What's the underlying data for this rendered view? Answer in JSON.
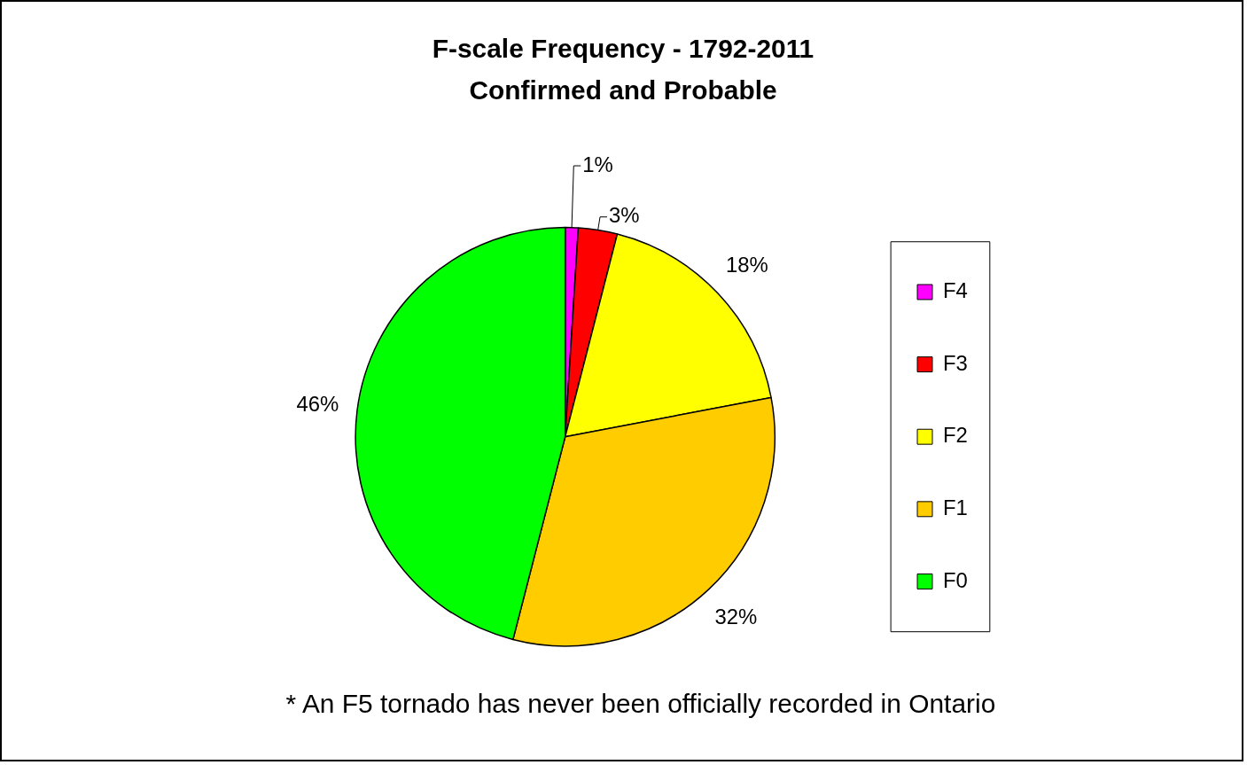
{
  "chart_data": {
    "type": "pie",
    "title": "F-scale Frequency - 1792-2011",
    "subtitle": "Confirmed and Probable",
    "categories": [
      "F4",
      "F3",
      "F2",
      "F1",
      "F0"
    ],
    "values": [
      1,
      3,
      18,
      32,
      46
    ],
    "colors": [
      "#ff00ff",
      "#ff0000",
      "#ffff00",
      "#ffcc00",
      "#00ff00"
    ],
    "value_labels": [
      "1%",
      "3%",
      "18%",
      "32%",
      "46%"
    ],
    "legend": "right",
    "annotations": [
      "* An F5 tornado has never been officially recorded in Ontario"
    ]
  }
}
